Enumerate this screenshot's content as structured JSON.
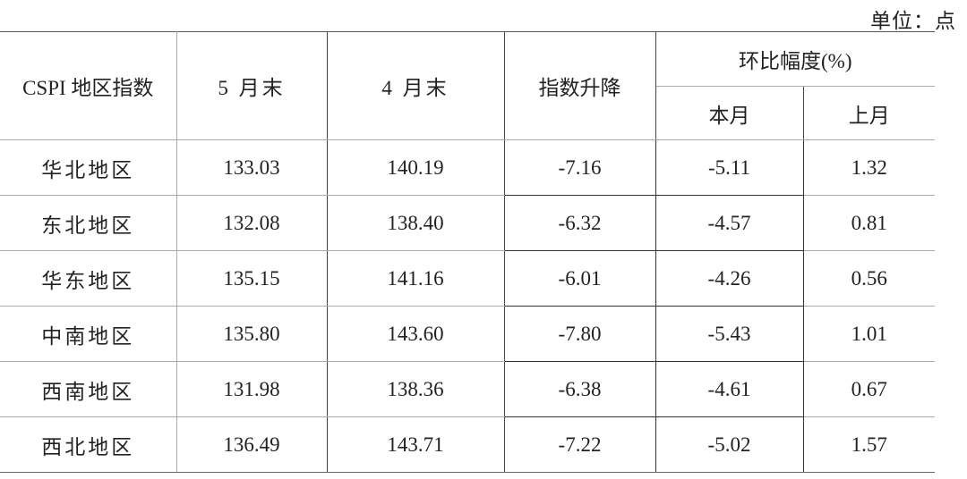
{
  "unit_label": "单位：点",
  "headers": {
    "region": "CSPI 地区指数",
    "may": "5 月末",
    "april": "4 月末",
    "change": "指数升降",
    "mom": "环比幅度(%)",
    "this_month": "本月",
    "last_month": "上月"
  },
  "rows": [
    {
      "region": "华北地区",
      "may": "133.03",
      "april": "140.19",
      "change": "-7.16",
      "this_month": "-5.11",
      "last_month": "1.32"
    },
    {
      "region": "东北地区",
      "may": "132.08",
      "april": "138.40",
      "change": "-6.32",
      "this_month": "-4.57",
      "last_month": "0.81"
    },
    {
      "region": "华东地区",
      "may": "135.15",
      "april": "141.16",
      "change": "-6.01",
      "this_month": "-4.26",
      "last_month": "0.56"
    },
    {
      "region": "中南地区",
      "may": "135.80",
      "april": "143.60",
      "change": "-7.80",
      "this_month": "-5.43",
      "last_month": "1.01"
    },
    {
      "region": "西南地区",
      "may": "131.98",
      "april": "138.36",
      "change": "-6.38",
      "this_month": "-4.61",
      "last_month": "0.67"
    },
    {
      "region": "西北地区",
      "may": "136.49",
      "april": "143.71",
      "change": "-7.22",
      "this_month": "-5.02",
      "last_month": "1.57"
    }
  ]
}
